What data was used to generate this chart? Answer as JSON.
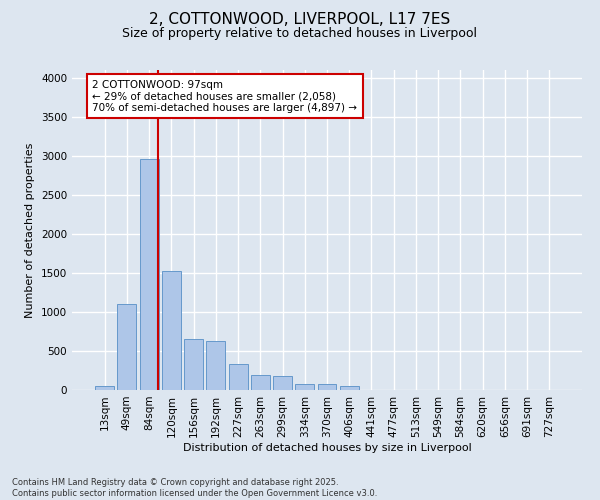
{
  "title_line1": "2, COTTONWOOD, LIVERPOOL, L17 7ES",
  "title_line2": "Size of property relative to detached houses in Liverpool",
  "xlabel": "Distribution of detached houses by size in Liverpool",
  "ylabel": "Number of detached properties",
  "categories": [
    "13sqm",
    "49sqm",
    "84sqm",
    "120sqm",
    "156sqm",
    "192sqm",
    "227sqm",
    "263sqm",
    "299sqm",
    "334sqm",
    "370sqm",
    "406sqm",
    "441sqm",
    "477sqm",
    "513sqm",
    "549sqm",
    "584sqm",
    "620sqm",
    "656sqm",
    "691sqm",
    "727sqm"
  ],
  "values": [
    55,
    1100,
    2960,
    1530,
    650,
    630,
    330,
    190,
    185,
    80,
    75,
    50,
    0,
    0,
    0,
    0,
    0,
    0,
    0,
    0,
    0
  ],
  "bar_color": "#aec6e8",
  "bar_edge_color": "#6699cc",
  "background_color": "#dde6f0",
  "grid_color": "#ffffff",
  "vline_color": "#cc0000",
  "vline_xindex": 2.42,
  "annotation_text": "2 COTTONWOOD: 97sqm\n← 29% of detached houses are smaller (2,058)\n70% of semi-detached houses are larger (4,897) →",
  "annotation_box_facecolor": "#ffffff",
  "annotation_box_edgecolor": "#cc0000",
  "ylim": [
    0,
    4100
  ],
  "yticks": [
    0,
    500,
    1000,
    1500,
    2000,
    2500,
    3000,
    3500,
    4000
  ],
  "footnote": "Contains HM Land Registry data © Crown copyright and database right 2025.\nContains public sector information licensed under the Open Government Licence v3.0.",
  "title_fontsize": 11,
  "subtitle_fontsize": 9,
  "axis_label_fontsize": 8,
  "tick_fontsize": 7.5,
  "annotation_fontsize": 7.5,
  "ylabel_fontsize": 8
}
